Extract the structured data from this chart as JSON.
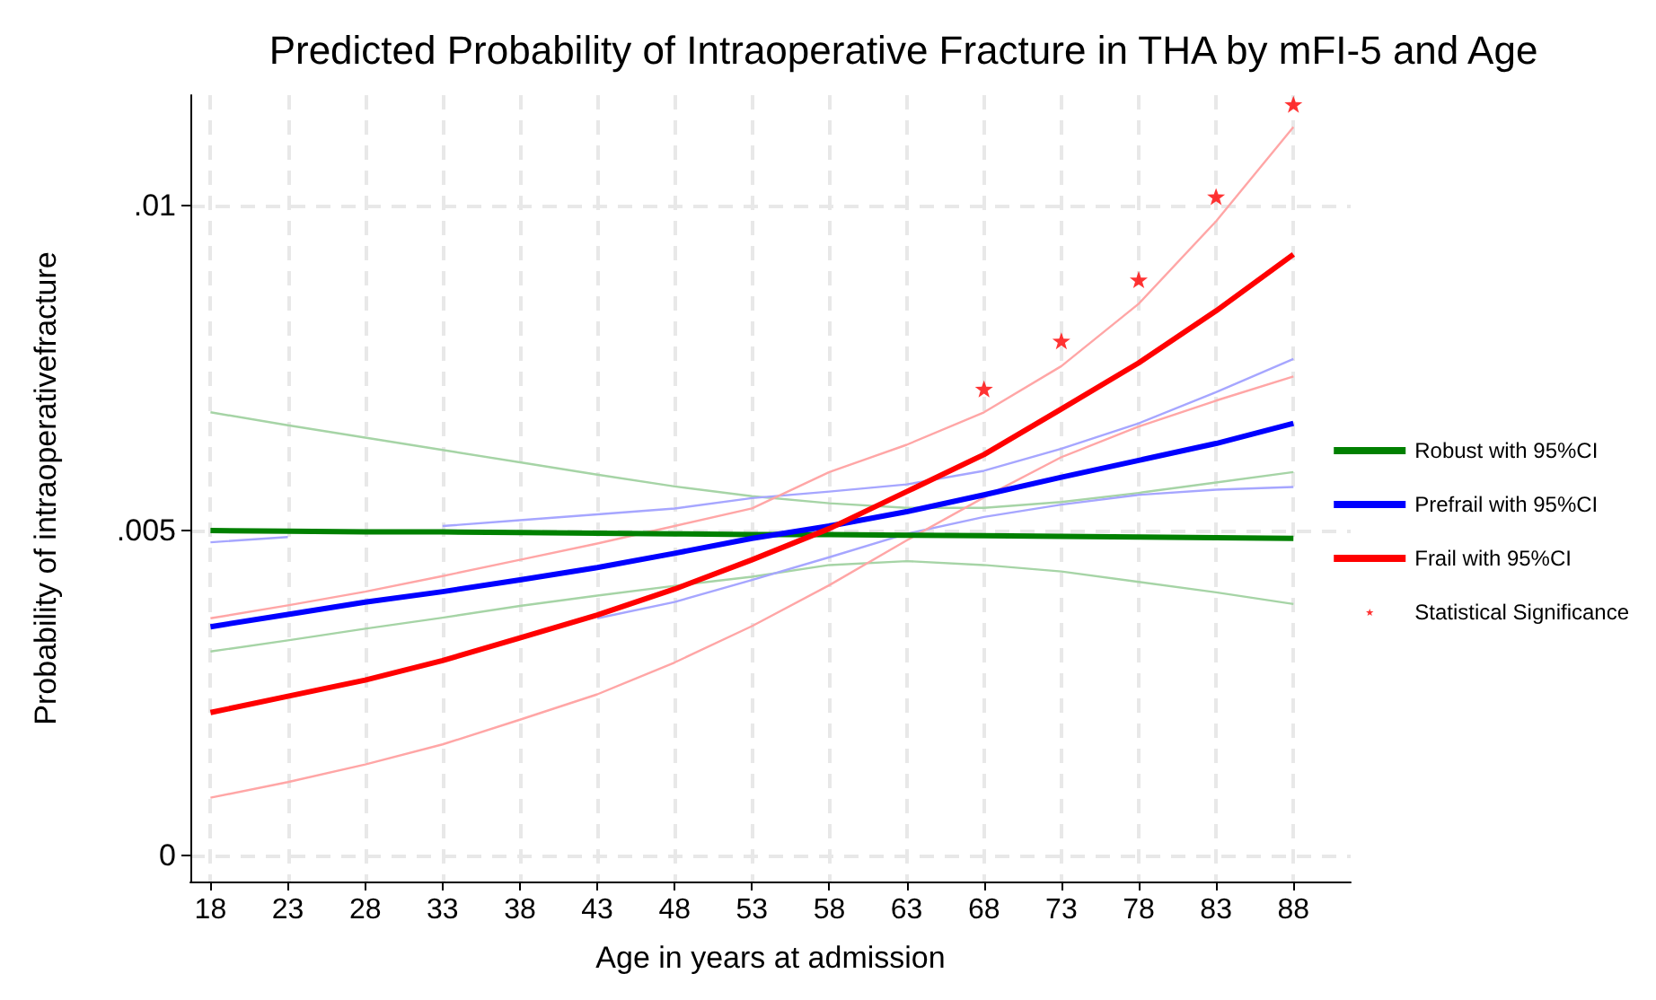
{
  "chart_data": {
    "type": "line",
    "title": "Predicted Probability of Intraoperative Fracture in THA by mFI-5 and Age",
    "xlabel": "Age in years at admission",
    "ylabel": "Probability of intraoperativefracture",
    "x": [
      18,
      23,
      28,
      33,
      38,
      43,
      48,
      53,
      58,
      63,
      68,
      73,
      78,
      83,
      88
    ],
    "series": [
      {
        "color": "#a6d4a6",
        "values": [
          0.00314,
          0.00331,
          0.00349,
          0.00366,
          0.00384,
          0.004,
          0.00415,
          0.00429,
          0.00447,
          0.00453,
          0.00447,
          0.00437,
          0.00421,
          0.00405,
          0.00387
        ]
      },
      {
        "color": "#a6d4a6",
        "values": [
          0.00682,
          0.00662,
          0.00643,
          0.00624,
          0.00605,
          0.00586,
          0.00568,
          0.00553,
          0.00542,
          0.00535,
          0.00535,
          0.00544,
          0.00558,
          0.00574,
          0.0059
        ]
      },
      {
        "color": "#a6a6ff",
        "values": [
          null,
          null,
          null,
          null,
          null,
          0.00365,
          0.0039,
          0.00424,
          0.00459,
          0.00495,
          0.00521,
          0.0054,
          0.00555,
          0.00563,
          0.00567
        ]
      },
      {
        "color": "#a6a6ff",
        "values": [
          0.00482,
          0.0049,
          null,
          0.00507,
          0.00516,
          0.00525,
          0.00534,
          0.0055,
          0.0056,
          0.00571,
          0.00592,
          0.00626,
          0.00665,
          0.00713,
          0.00764
        ]
      },
      {
        "color": "#ffa6a6",
        "values": [
          0.00089,
          0.00113,
          0.0014,
          0.00171,
          0.00209,
          0.00248,
          0.00297,
          0.00353,
          0.00416,
          0.00485,
          0.00551,
          0.00613,
          0.0066,
          0.007,
          0.00737
        ]
      },
      {
        "color": "#ffa6a6",
        "values": [
          0.00365,
          0.00385,
          0.00406,
          0.0043,
          0.00455,
          0.0048,
          0.00507,
          0.00534,
          0.0059,
          0.00632,
          0.00682,
          0.00753,
          0.00849,
          0.00976,
          0.01121
        ]
      },
      {
        "name": "Robust with 95%CI",
        "color": "#008000",
        "values": [
          0.005,
          0.00499,
          0.00498,
          0.00498,
          0.00497,
          0.00496,
          0.00495,
          0.00494,
          0.00494,
          0.00493,
          0.00492,
          0.00491,
          0.0049,
          0.00489,
          0.00488
        ]
      },
      {
        "name": "Prefrail with 95%CI",
        "color": "#0000ff",
        "values": [
          0.00352,
          0.00371,
          0.0039,
          0.00406,
          0.00424,
          0.00443,
          0.00465,
          0.00488,
          0.00507,
          0.00529,
          0.00555,
          0.00582,
          0.00608,
          0.00634,
          0.00665
        ]
      },
      {
        "name": "Frail with 95%CI",
        "color": "#ff0000",
        "values": [
          0.0022,
          0.00245,
          0.0027,
          0.003,
          0.00335,
          0.0037,
          0.0041,
          0.00455,
          0.00503,
          0.0056,
          0.00617,
          0.00687,
          0.00758,
          0.00838,
          0.00925
        ]
      },
      {
        "name": "Statistical Significance",
        "type": "scatter",
        "marker": "star",
        "color": "#ff0000",
        "x": [
          68,
          73,
          78,
          83,
          88
        ],
        "values": [
          0.00718,
          0.00792,
          0.00886,
          0.01014,
          0.01156
        ]
      }
    ],
    "xlim": [
      16.7,
      91.7
    ],
    "xticks": [
      18,
      23,
      28,
      33,
      38,
      43,
      48,
      53,
      58,
      63,
      68,
      73,
      78,
      83,
      88
    ],
    "ylim": [
      -0.0004,
      0.0117
    ],
    "yticks": [
      {
        "value": 0,
        "label": "0"
      },
      {
        "value": 0.005,
        "label": ".005"
      },
      {
        "value": 0.01,
        "label": ".01"
      }
    ],
    "grid": true,
    "legend": "right",
    "line_style": "solid"
  }
}
